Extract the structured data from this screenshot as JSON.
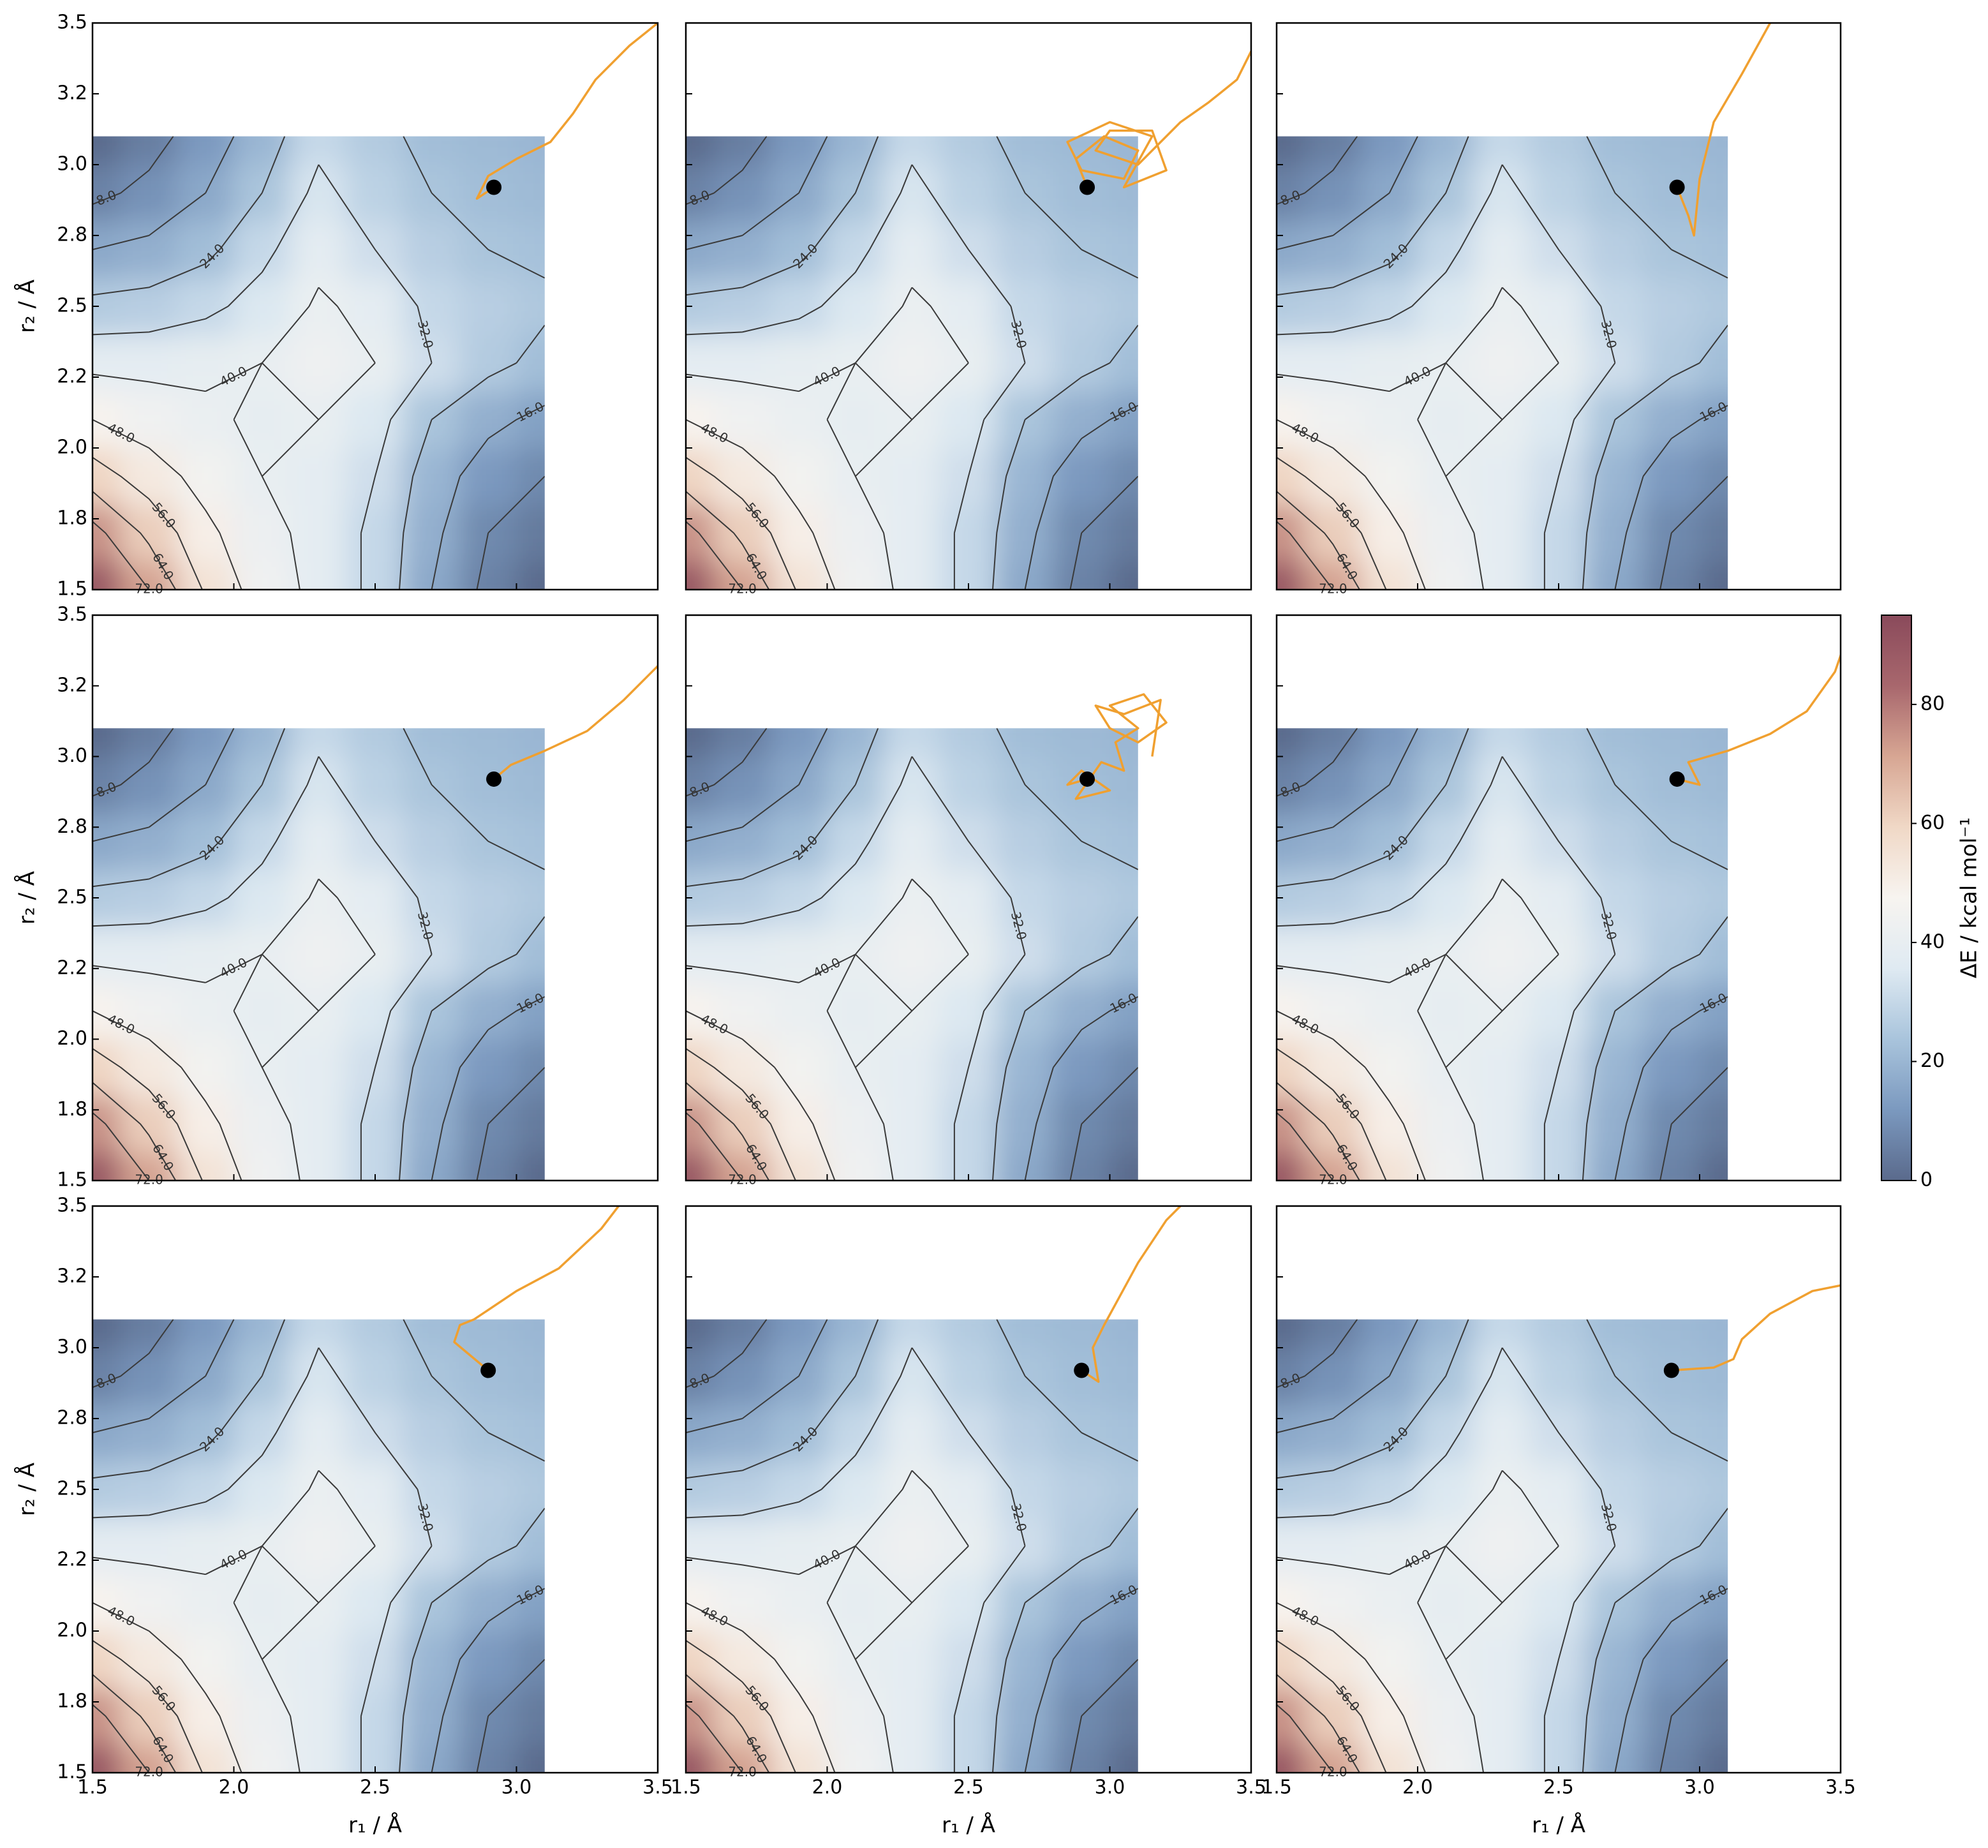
{
  "chart_data": {
    "type": "contour",
    "x_label": "r₁ / Å",
    "y_label": "r₂ / Å",
    "colorbar_label": "ΔE / kcal mol⁻¹",
    "xlim": [
      1.5,
      3.5
    ],
    "ylim": [
      1.5,
      3.5
    ],
    "xticks": [
      1.5,
      {
        "value": 2,
        "label": "2.0"
      },
      2.5,
      {
        "value": 3,
        "label": "3.0"
      },
      3.5
    ],
    "yticks": [
      1.5,
      {
        "value": 1.75,
        "label": "1.8"
      },
      {
        "value": 2,
        "label": "2.0"
      },
      {
        "value": 2.25,
        "label": "2.2"
      },
      2.5,
      {
        "value": 2.75,
        "label": "2.8"
      },
      {
        "value": 3,
        "label": "3.0"
      },
      {
        "value": 3.25,
        "label": "3.2"
      },
      3.5
    ],
    "grid_x": [
      1.5,
      1.7,
      1.9,
      2.1,
      2.3,
      2.5,
      2.7,
      2.9,
      3.1
    ],
    "grid_y": [
      1.5,
      1.7,
      1.9,
      2.1,
      2.3,
      2.5,
      2.7,
      2.9,
      3.1
    ],
    "z": [
      [
        90,
        72,
        55,
        44,
        38,
        30,
        16,
        6,
        0
      ],
      [
        75,
        62,
        50,
        42,
        38,
        30,
        18,
        8,
        4
      ],
      [
        60,
        52,
        45,
        40,
        38,
        32,
        20,
        12,
        8
      ],
      [
        48,
        44,
        41,
        39,
        40,
        35,
        24,
        18,
        14
      ],
      [
        38,
        38,
        39,
        40,
        43,
        40,
        32,
        26,
        22
      ],
      [
        26,
        27,
        30,
        35,
        41,
        38,
        30,
        27,
        25
      ],
      [
        16,
        18,
        22,
        30,
        38,
        32,
        27,
        24,
        23
      ],
      [
        6,
        10,
        16,
        24,
        34,
        28,
        24,
        22,
        21
      ],
      [
        0,
        5,
        12,
        20,
        30,
        26,
        22,
        21,
        20
      ]
    ],
    "levels": [
      {
        "value": 8,
        "label": "8.0"
      },
      {
        "value": 16,
        "label": "16.0"
      },
      {
        "value": 24,
        "label": "24.0"
      },
      {
        "value": 32,
        "label": "32.0"
      },
      {
        "value": 40,
        "label": "40.0"
      },
      {
        "value": 48,
        "label": "48.0"
      },
      {
        "value": 56,
        "label": "56.0"
      },
      {
        "value": 64,
        "label": "64.0"
      },
      {
        "value": 72,
        "label": "72.0"
      }
    ],
    "colorbar_lim": [
      0,
      95
    ],
    "colorbar_ticks": [
      0,
      20,
      40,
      60,
      80
    ],
    "colormap": [
      "#5a6a8c",
      "#7b99bf",
      "#a9c4dc",
      "#dfeaf2",
      "#f7f4f0",
      "#f0d8c6",
      "#d7a693",
      "#a8676d",
      "#8a4a5b"
    ],
    "contour_color": "#3a3a3a",
    "trajectory_color": "#f0a030",
    "point_color": "#000000",
    "panels": [
      {
        "trajectory": {
          "x": [
            2.92,
            2.86,
            2.9,
            3.0,
            3.12,
            3.2,
            3.28,
            3.4,
            3.5,
            3.6
          ],
          "y": [
            2.92,
            2.88,
            2.96,
            3.02,
            3.08,
            3.18,
            3.3,
            3.42,
            3.5,
            3.58
          ]
        },
        "point": {
          "x": 2.92,
          "y": 2.92
        }
      },
      {
        "trajectory": {
          "x": [
            2.92,
            2.88,
            2.98,
            3.1,
            3.05,
            2.9,
            2.85,
            3.0,
            3.15,
            3.05,
            3.2,
            3.15,
            3.0,
            2.95,
            3.1,
            3.25,
            3.35,
            3.45,
            3.5
          ],
          "y": [
            2.92,
            3.02,
            3.1,
            3.05,
            2.95,
            2.98,
            3.08,
            3.15,
            3.1,
            2.92,
            2.98,
            3.12,
            3.12,
            3.05,
            3.0,
            3.15,
            3.22,
            3.3,
            3.4
          ]
        },
        "point": {
          "x": 2.92,
          "y": 2.92
        }
      },
      {
        "trajectory": {
          "x": [
            2.92,
            2.96,
            2.98,
            3.0,
            3.05,
            3.15,
            3.25
          ],
          "y": [
            2.92,
            2.82,
            2.75,
            2.95,
            3.15,
            3.32,
            3.5
          ]
        },
        "point": {
          "x": 2.92,
          "y": 2.92
        }
      },
      {
        "trajectory": {
          "x": [
            2.92,
            2.98,
            3.1,
            3.25,
            3.38,
            3.5
          ],
          "y": [
            2.92,
            2.97,
            3.02,
            3.09,
            3.2,
            3.32
          ]
        },
        "point": {
          "x": 2.92,
          "y": 2.92
        }
      },
      {
        "trajectory": {
          "x": [
            2.92,
            2.85,
            2.9,
            3.0,
            2.88,
            2.97,
            3.05,
            3.02,
            3.1,
            3.0,
            3.12,
            3.2,
            3.1,
            3.0,
            2.95,
            3.05,
            3.18,
            3.15
          ],
          "y": [
            2.92,
            2.9,
            2.95,
            2.88,
            2.85,
            2.98,
            2.95,
            3.05,
            3.1,
            3.18,
            3.22,
            3.12,
            3.05,
            3.1,
            3.18,
            3.15,
            3.2,
            3.0
          ]
        },
        "point": {
          "x": 2.92,
          "y": 2.92
        }
      },
      {
        "trajectory": {
          "x": [
            2.92,
            3.0,
            2.96,
            3.1,
            3.25,
            3.38,
            3.48,
            3.55
          ],
          "y": [
            2.92,
            2.9,
            2.98,
            3.02,
            3.08,
            3.16,
            3.3,
            3.5
          ]
        },
        "point": {
          "x": 2.92,
          "y": 2.92
        }
      },
      {
        "trajectory": {
          "x": [
            2.9,
            2.78,
            2.8,
            2.85,
            3.0,
            3.15,
            3.3,
            3.4
          ],
          "y": [
            2.92,
            3.02,
            3.08,
            3.1,
            3.2,
            3.28,
            3.42,
            3.55
          ]
        },
        "point": {
          "x": 2.9,
          "y": 2.92
        }
      },
      {
        "trajectory": {
          "x": [
            2.9,
            2.96,
            2.94,
            2.98,
            3.1,
            3.2,
            3.3
          ],
          "y": [
            2.92,
            2.88,
            3.0,
            3.08,
            3.3,
            3.45,
            3.55
          ]
        },
        "point": {
          "x": 2.9,
          "y": 2.92
        }
      },
      {
        "trajectory": {
          "x": [
            2.9,
            3.05,
            3.12,
            3.15,
            3.25,
            3.4,
            3.5
          ],
          "y": [
            2.92,
            2.93,
            2.96,
            3.03,
            3.12,
            3.2,
            3.22
          ]
        },
        "point": {
          "x": 2.9,
          "y": 2.92
        }
      }
    ]
  }
}
